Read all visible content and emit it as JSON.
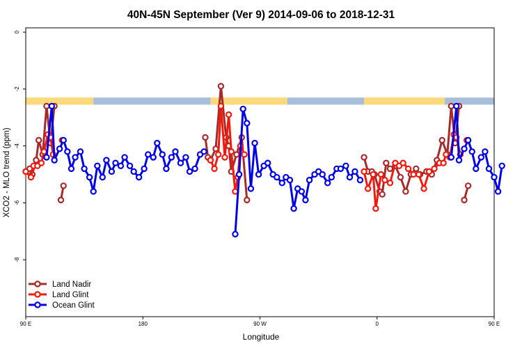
{
  "chart_data": {
    "type": "line",
    "title": "40N-45N September (Ver 9)   2014-09-06 to 2018-12-31",
    "xlabel": "Longitude",
    "ylabel": "XCO2 - MLO trend (ppm)",
    "xlim": [
      90,
      450
    ],
    "ylim": [
      -10,
      0.15
    ],
    "x_ticks": [
      {
        "value": 90,
        "label": "90 E"
      },
      {
        "value": 180,
        "label": "180"
      },
      {
        "value": 270,
        "label": "90 W"
      },
      {
        "value": 360,
        "label": "0"
      },
      {
        "value": 450,
        "label": "90 E"
      },
      {
        "value": 540,
        "label": "180"
      }
    ],
    "y_ticks": [
      {
        "value": 0,
        "label": "0"
      },
      {
        "value": -2,
        "label": "-2"
      },
      {
        "value": -4,
        "label": "-4"
      },
      {
        "value": -6,
        "label": "-6"
      },
      {
        "value": -8,
        "label": "-8"
      }
    ],
    "legend_position": "bottom-left",
    "land_ocean_band": {
      "y_top": -2.3,
      "y_bottom": -2.55,
      "land_color": "#fcd97a",
      "ocean_color": "#a7bfdd",
      "segments": [
        {
          "x0": 90,
          "x1": 142,
          "kind": "land"
        },
        {
          "x0": 142,
          "x1": 232,
          "kind": "ocean"
        },
        {
          "x0": 232,
          "x1": 291,
          "kind": "land"
        },
        {
          "x0": 291,
          "x1": 350,
          "kind": "ocean"
        },
        {
          "x0": 350,
          "x1": 412,
          "kind": "land"
        },
        {
          "x0": 412,
          "x1": 540,
          "kind": "ocean"
        }
      ]
    },
    "series": [
      {
        "name": "Land Nadir",
        "color": "#a52a2a",
        "segments": [
          [
            [
              90,
              -4.9
            ],
            [
              93,
              -4.8
            ],
            [
              95,
              -5.0
            ],
            [
              98,
              -4.5
            ],
            [
              100,
              -3.8
            ],
            [
              103,
              -4.3
            ],
            [
              106,
              -2.6
            ],
            [
              109,
              -3.9
            ],
            [
              112,
              -2.6
            ]
          ],
          [
            [
              117,
              -5.9
            ],
            [
              119,
              -5.4
            ]
          ],
          [
            [
              228,
              -3.7
            ],
            [
              230,
              -4.4
            ],
            [
              232,
              -4.5
            ],
            [
              236,
              -4.1
            ],
            [
              240,
              -1.9
            ],
            [
              244,
              -3.7
            ],
            [
              246,
              -4.0
            ],
            [
              248,
              -4.9
            ],
            [
              252,
              -4.3
            ],
            [
              256,
              -3.7
            ],
            [
              260,
              -5.9
            ]
          ],
          [
            [
              350,
              -4.4
            ],
            [
              353,
              -4.9
            ],
            [
              356,
              -4.9
            ],
            [
              358,
              -5.0
            ],
            [
              362,
              -5.6
            ],
            [
              364,
              -5.7
            ],
            [
              367,
              -4.6
            ],
            [
              370,
              -4.8
            ],
            [
              374,
              -4.7
            ],
            [
              378,
              -5.1
            ],
            [
              382,
              -5.6
            ],
            [
              386,
              -5.0
            ],
            [
              390,
              -4.8
            ],
            [
              393,
              -5.0
            ],
            [
              398,
              -4.9
            ],
            [
              402,
              -5.0
            ],
            [
              406,
              -4.5
            ],
            [
              410,
              -3.8
            ],
            [
              414,
              -4.3
            ],
            [
              417,
              -2.6
            ],
            [
              420,
              -3.9
            ],
            [
              423,
              -2.6
            ]
          ],
          [
            [
              427,
              -5.9
            ],
            [
              430,
              -5.4
            ]
          ]
        ]
      },
      {
        "name": "Land Glint",
        "color": "#f21a0d",
        "segments": [
          [
            [
              90,
              -4.9
            ],
            [
              94,
              -5.1
            ],
            [
              96,
              -4.7
            ],
            [
              99,
              -4.7
            ],
            [
              102,
              -4.6
            ],
            [
              104,
              -4.2
            ],
            [
              107,
              -3.6
            ],
            [
              109,
              -3.7
            ],
            [
              111,
              -4.3
            ]
          ],
          [
            [
              118,
              -3.8
            ]
          ],
          [
            [
              232,
              -4.5
            ],
            [
              235,
              -4.8
            ],
            [
              238,
              -4.3
            ],
            [
              240,
              -2.6
            ],
            [
              243,
              -4.4
            ],
            [
              246,
              -2.9
            ],
            [
              248,
              -4.2
            ],
            [
              251,
              -5.6
            ],
            [
              253,
              -5.1
            ],
            [
              255,
              -4.0
            ],
            [
              258,
              -4.3
            ]
          ],
          [
            [
              350,
              -4.9
            ],
            [
              353,
              -5.5
            ],
            [
              357,
              -5.0
            ],
            [
              359,
              -6.2
            ],
            [
              363,
              -5.0
            ],
            [
              366,
              -5.2
            ],
            [
              370,
              -5.3
            ],
            [
              374,
              -4.6
            ],
            [
              377,
              -4.7
            ],
            [
              380,
              -4.6
            ],
            [
              384,
              -4.8
            ],
            [
              388,
              -5.0
            ],
            [
              392,
              -5.0
            ],
            [
              396,
              -5.5
            ],
            [
              400,
              -4.9
            ],
            [
              404,
              -4.8
            ],
            [
              408,
              -4.6
            ],
            [
              411,
              -4.6
            ],
            [
              413,
              -4.3
            ],
            [
              416,
              -4.4
            ],
            [
              419,
              -3.6
            ],
            [
              421,
              -3.7
            ],
            [
              424,
              -4.3
            ]
          ],
          [
            [
              429,
              -3.8
            ]
          ]
        ]
      },
      {
        "name": "Ocean Glint",
        "color": "#0000e6",
        "segments": [
          [
            [
              106,
              -4.4
            ],
            [
              110,
              -2.6
            ],
            [
              112,
              -4.5
            ],
            [
              116,
              -4.1
            ],
            [
              119,
              -3.8
            ],
            [
              122,
              -4.2
            ],
            [
              125,
              -4.8
            ],
            [
              128,
              -4.4
            ],
            [
              132,
              -4.2
            ],
            [
              135,
              -4.8
            ],
            [
              139,
              -5.1
            ],
            [
              142,
              -5.6
            ],
            [
              145,
              -4.7
            ],
            [
              149,
              -5.1
            ],
            [
              152,
              -4.5
            ],
            [
              156,
              -4.9
            ],
            [
              159,
              -4.6
            ],
            [
              163,
              -4.7
            ],
            [
              166,
              -4.4
            ],
            [
              170,
              -4.7
            ],
            [
              173,
              -4.9
            ],
            [
              177,
              -5.1
            ],
            [
              181,
              -4.8
            ],
            [
              184,
              -4.3
            ],
            [
              188,
              -4.4
            ],
            [
              191,
              -3.9
            ],
            [
              195,
              -4.3
            ],
            [
              198,
              -4.8
            ],
            [
              202,
              -4.4
            ],
            [
              205,
              -4.2
            ],
            [
              209,
              -4.6
            ],
            [
              213,
              -4.4
            ],
            [
              216,
              -4.9
            ],
            [
              220,
              -4.8
            ],
            [
              224,
              -4.3
            ],
            [
              227,
              -4.2
            ]
          ],
          [
            [
              251,
              -7.1
            ],
            [
              254,
              -5.0
            ],
            [
              257,
              -2.7
            ],
            [
              260,
              -3.2
            ],
            [
              263,
              -5.5
            ],
            [
              266,
              -3.9
            ],
            [
              269,
              -5.0
            ],
            [
              273,
              -4.7
            ],
            [
              276,
              -4.6
            ],
            [
              280,
              -5.0
            ],
            [
              283,
              -5.1
            ],
            [
              287,
              -5.3
            ],
            [
              290,
              -5.1
            ],
            [
              293,
              -5.2
            ],
            [
              296,
              -6.2
            ],
            [
              299,
              -5.5
            ],
            [
              302,
              -5.6
            ],
            [
              305,
              -5.9
            ],
            [
              308,
              -5.2
            ],
            [
              312,
              -5.0
            ],
            [
              315,
              -4.9
            ],
            [
              318,
              -5.0
            ],
            [
              322,
              -5.3
            ],
            [
              325,
              -5.1
            ],
            [
              329,
              -4.8
            ],
            [
              332,
              -4.8
            ],
            [
              336,
              -4.7
            ],
            [
              339,
              -5.1
            ],
            [
              343,
              -4.9
            ],
            [
              347,
              -5.2
            ]
          ],
          [
            [
              417,
              -4.4
            ],
            [
              421,
              -2.6
            ],
            [
              423,
              -4.5
            ],
            [
              427,
              -4.1
            ],
            [
              430,
              -3.8
            ],
            [
              433,
              -4.2
            ],
            [
              436,
              -4.8
            ],
            [
              440,
              -4.4
            ],
            [
              443,
              -4.2
            ],
            [
              446,
              -4.8
            ],
            [
              450,
              -5.1
            ],
            [
              453,
              -5.6
            ],
            [
              456,
              -4.7
            ]
          ]
        ]
      }
    ]
  }
}
